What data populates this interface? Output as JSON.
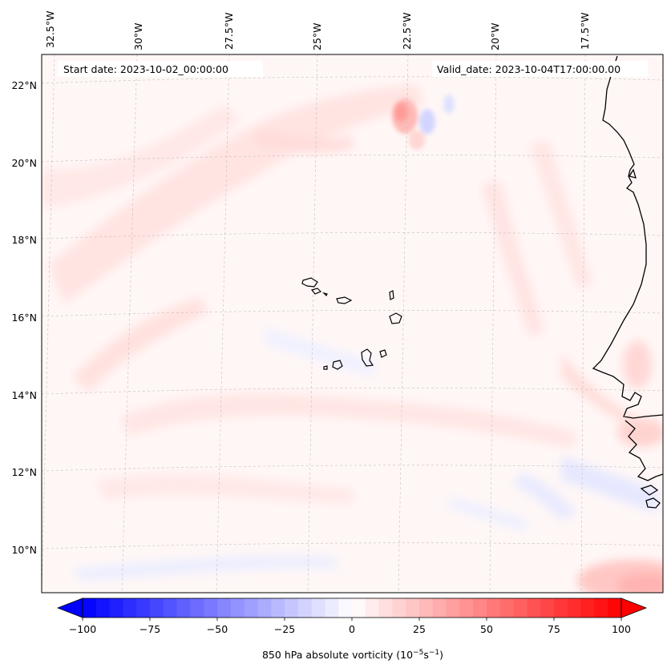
{
  "map": {
    "start_date": "Start date: 2023-10-02_00:00:00",
    "valid_date": "Valid_date: 2023-10-04T17:00:00.00",
    "lon_labels": [
      "32.5°W",
      "30°W",
      "27.5°W",
      "25°W",
      "22.5°W",
      "20°W",
      "17.5°W"
    ],
    "lat_labels": [
      "22°N",
      "20°N",
      "18°N",
      "16°N",
      "14°N",
      "12°N",
      "10°N"
    ]
  },
  "colorbar": {
    "ticks": [
      "−100",
      "−75",
      "−50",
      "−25",
      "0",
      "25",
      "50",
      "75",
      "100"
    ],
    "label_main": "850 hPa absolute vorticity (10",
    "label_exp1": "−5",
    "label_mid": "s",
    "label_exp2": "−1",
    "label_end": ")",
    "min": -100,
    "max": 100,
    "levels": 40,
    "neg_color": "#0000ff",
    "pos_color": "#ff0000",
    "mid_color": "#ffffff"
  }
}
